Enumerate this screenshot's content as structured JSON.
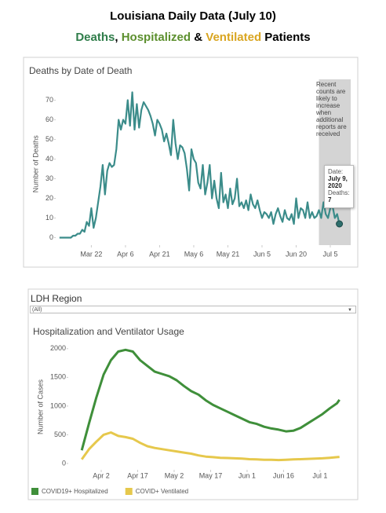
{
  "header": {
    "title": "Louisiana Daily Data (July 10)",
    "subtitle_parts": [
      {
        "text": "Deaths",
        "color": "#2f7d4a"
      },
      {
        "text": ",",
        "color": "#000000"
      },
      {
        "text": "Hospitalized",
        "color": "#5c8f2e"
      },
      {
        "text": "&",
        "color": "#000000"
      },
      {
        "text": "Ventilated",
        "color": "#d9a520"
      },
      {
        "text": "Patients",
        "color": "#000000"
      }
    ]
  },
  "chart_data": [
    {
      "type": "line",
      "title": "Deaths by Date of Death",
      "y_label": "Number of Deaths",
      "annotation": "Recent counts are likely to increase when additional reports are received",
      "shaded_range": [
        "2020-06-30",
        "2020-07-15"
      ],
      "tooltip": {
        "date_label": "Date:",
        "date": "July 9, 2020",
        "value_label": "Deaths:"
      },
      "xlim": [
        "2020-03-06",
        "2020-07-15"
      ],
      "xticks": [
        {
          "value": "2020-03-22",
          "label": "Mar 22"
        },
        {
          "value": "2020-04-06",
          "label": "Apr 6"
        },
        {
          "value": "2020-04-21",
          "label": "Apr 21"
        },
        {
          "value": "2020-05-06",
          "label": "May 6"
        },
        {
          "value": "2020-05-21",
          "label": "May 21"
        },
        {
          "value": "2020-06-05",
          "label": "Jun 5"
        },
        {
          "value": "2020-06-20",
          "label": "Jun 20"
        },
        {
          "value": "2020-07-05",
          "label": "Jul 5"
        }
      ],
      "ylim": [
        -4,
        79
      ],
      "yticks": [
        0,
        10,
        20,
        30,
        40,
        50,
        60,
        70
      ],
      "grid": false,
      "x": [
        "2020-03-08",
        "2020-03-09",
        "2020-03-10",
        "2020-03-11",
        "2020-03-12",
        "2020-03-13",
        "2020-03-14",
        "2020-03-15",
        "2020-03-16",
        "2020-03-17",
        "2020-03-18",
        "2020-03-19",
        "2020-03-20",
        "2020-03-21",
        "2020-03-22",
        "2020-03-23",
        "2020-03-24",
        "2020-03-25",
        "2020-03-26",
        "2020-03-27",
        "2020-03-28",
        "2020-03-29",
        "2020-03-30",
        "2020-03-31",
        "2020-04-01",
        "2020-04-02",
        "2020-04-03",
        "2020-04-04",
        "2020-04-05",
        "2020-04-06",
        "2020-04-07",
        "2020-04-08",
        "2020-04-09",
        "2020-04-10",
        "2020-04-11",
        "2020-04-12",
        "2020-04-13",
        "2020-04-14",
        "2020-04-15",
        "2020-04-16",
        "2020-04-17",
        "2020-04-18",
        "2020-04-19",
        "2020-04-20",
        "2020-04-21",
        "2020-04-22",
        "2020-04-23",
        "2020-04-24",
        "2020-04-25",
        "2020-04-26",
        "2020-04-27",
        "2020-04-28",
        "2020-04-29",
        "2020-04-30",
        "2020-05-01",
        "2020-05-02",
        "2020-05-03",
        "2020-05-04",
        "2020-05-05",
        "2020-05-06",
        "2020-05-07",
        "2020-05-08",
        "2020-05-09",
        "2020-05-10",
        "2020-05-11",
        "2020-05-12",
        "2020-05-13",
        "2020-05-14",
        "2020-05-15",
        "2020-05-16",
        "2020-05-17",
        "2020-05-18",
        "2020-05-19",
        "2020-05-20",
        "2020-05-21",
        "2020-05-22",
        "2020-05-23",
        "2020-05-24",
        "2020-05-25",
        "2020-05-26",
        "2020-05-27",
        "2020-05-28",
        "2020-05-29",
        "2020-05-30",
        "2020-05-31",
        "2020-06-01",
        "2020-06-02",
        "2020-06-03",
        "2020-06-04",
        "2020-06-05",
        "2020-06-06",
        "2020-06-07",
        "2020-06-08",
        "2020-06-09",
        "2020-06-10",
        "2020-06-11",
        "2020-06-12",
        "2020-06-13",
        "2020-06-14",
        "2020-06-15",
        "2020-06-16",
        "2020-06-17",
        "2020-06-18",
        "2020-06-19",
        "2020-06-20",
        "2020-06-21",
        "2020-06-22",
        "2020-06-23",
        "2020-06-24",
        "2020-06-25",
        "2020-06-26",
        "2020-06-27",
        "2020-06-28",
        "2020-06-29",
        "2020-06-30",
        "2020-07-01",
        "2020-07-02",
        "2020-07-03",
        "2020-07-04",
        "2020-07-05",
        "2020-07-06",
        "2020-07-07",
        "2020-07-08",
        "2020-07-09"
      ],
      "series": [
        {
          "name": "Deaths",
          "color": "#3b8c8a",
          "values": [
            0,
            0,
            0,
            0,
            0,
            0,
            1,
            1,
            2,
            2,
            4,
            3,
            8,
            6,
            15,
            5,
            10,
            18,
            26,
            37,
            22,
            34,
            38,
            36,
            37,
            45,
            60,
            55,
            60,
            58,
            70,
            57,
            74,
            55,
            68,
            56,
            65,
            69,
            67,
            65,
            62,
            58,
            52,
            60,
            58,
            55,
            49,
            53,
            48,
            42,
            60,
            48,
            40,
            47,
            46,
            43,
            35,
            24,
            45,
            40,
            38,
            28,
            25,
            37,
            22,
            28,
            37,
            20,
            29,
            20,
            15,
            33,
            18,
            22,
            15,
            25,
            17,
            20,
            30,
            16,
            18,
            15,
            19,
            14,
            22,
            17,
            15,
            19,
            14,
            10,
            13,
            12,
            10,
            13,
            7,
            12,
            15,
            11,
            8,
            14,
            10,
            9,
            12,
            7,
            20,
            10,
            15,
            14,
            10,
            18,
            10,
            13,
            10,
            11,
            14,
            10,
            18,
            12,
            10,
            15,
            16,
            10,
            12,
            7
          ]
        }
      ]
    },
    {
      "type": "line",
      "filter_label": "LDH Region",
      "filter_value": "(All)",
      "title": "Hospitalization and Ventilator Usage",
      "y_label": "Number of Cases",
      "xlim": [
        "2020-03-23",
        "2020-07-12"
      ],
      "xticks": [
        {
          "value": "2020-04-02",
          "label": "Apr 2"
        },
        {
          "value": "2020-04-17",
          "label": "Apr 17"
        },
        {
          "value": "2020-05-02",
          "label": "May 2"
        },
        {
          "value": "2020-05-17",
          "label": "May 17"
        },
        {
          "value": "2020-06-01",
          "label": "Jun 1"
        },
        {
          "value": "2020-06-16",
          "label": "Jun 16"
        },
        {
          "value": "2020-07-01",
          "label": "Jul 1"
        }
      ],
      "ylim": [
        -110,
        2080
      ],
      "yticks": [
        0,
        500,
        1000,
        1500,
        2000
      ],
      "grid": false,
      "legend": "bottom",
      "x": [
        "2020-03-25",
        "2020-03-28",
        "2020-03-31",
        "2020-04-03",
        "2020-04-06",
        "2020-04-09",
        "2020-04-12",
        "2020-04-15",
        "2020-04-18",
        "2020-04-21",
        "2020-04-24",
        "2020-04-27",
        "2020-04-30",
        "2020-05-03",
        "2020-05-06",
        "2020-05-09",
        "2020-05-12",
        "2020-05-15",
        "2020-05-18",
        "2020-05-21",
        "2020-05-24",
        "2020-05-27",
        "2020-05-30",
        "2020-06-02",
        "2020-06-05",
        "2020-06-08",
        "2020-06-11",
        "2020-06-14",
        "2020-06-17",
        "2020-06-20",
        "2020-06-23",
        "2020-06-26",
        "2020-06-29",
        "2020-07-02",
        "2020-07-05",
        "2020-07-08",
        "2020-07-09"
      ],
      "series": [
        {
          "name": "COVID19+ Hospitalized",
          "color": "#3f8f3a",
          "values": [
            230,
            700,
            1150,
            1550,
            1800,
            1950,
            1980,
            1950,
            1800,
            1700,
            1600,
            1560,
            1520,
            1450,
            1350,
            1260,
            1200,
            1100,
            1020,
            960,
            900,
            840,
            780,
            720,
            690,
            640,
            610,
            590,
            560,
            570,
            620,
            700,
            780,
            860,
            960,
            1050,
            1110
          ]
        },
        {
          "name": "COVID+ Ventilated",
          "color": "#e6c84c",
          "values": [
            70,
            250,
            380,
            500,
            540,
            480,
            460,
            430,
            360,
            300,
            270,
            250,
            230,
            210,
            190,
            170,
            140,
            120,
            110,
            100,
            95,
            90,
            85,
            75,
            70,
            65,
            65,
            60,
            65,
            70,
            75,
            80,
            85,
            90,
            100,
            110,
            115
          ]
        }
      ]
    }
  ]
}
